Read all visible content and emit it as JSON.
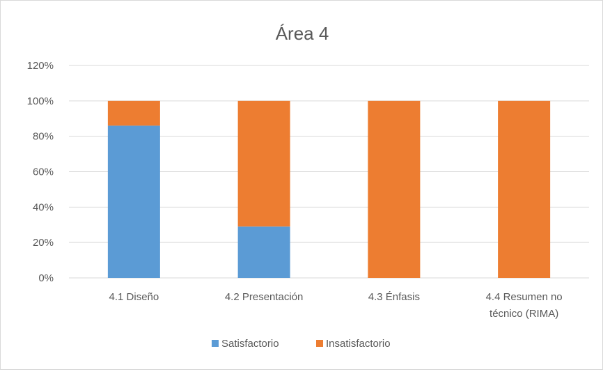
{
  "chart_data": {
    "type": "bar",
    "stacked": true,
    "title": "Área 4",
    "categories": [
      [
        "4.1 Diseño"
      ],
      [
        "4.2 Presentación"
      ],
      [
        "4.3 Énfasis"
      ],
      [
        "4.4 Resumen no",
        "técnico (RIMA)"
      ]
    ],
    "series": [
      {
        "name": "Satisfactorio",
        "color": "#5b9bd5",
        "values": [
          0.86,
          0.29,
          0,
          0
        ]
      },
      {
        "name": "Insatisfactorio",
        "color": "#ed7d31",
        "values": [
          0.14,
          0.71,
          1.0,
          1.0
        ]
      }
    ],
    "ylim": [
      0,
      1.2
    ],
    "yticks": [
      "0%",
      "20%",
      "40%",
      "60%",
      "80%",
      "100%",
      "120%"
    ],
    "grid": true,
    "legend_position": "bottom"
  }
}
